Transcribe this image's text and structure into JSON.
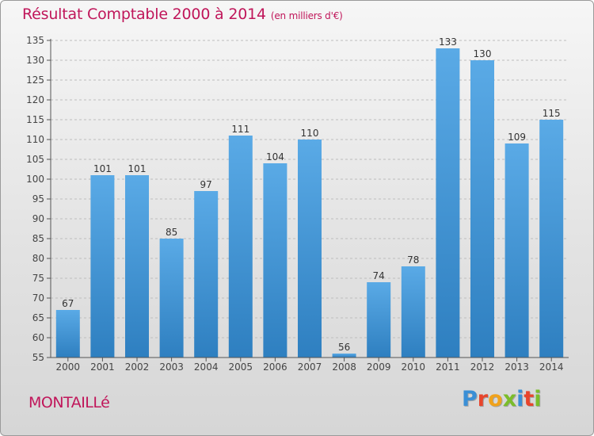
{
  "header": {
    "title": "Résultat Comptable 2000 à 2014",
    "unit": "(en milliers d'€)"
  },
  "footer": {
    "commune": "MONTAILLé",
    "brand": "Proxiti"
  },
  "colors": {
    "title": "#c0165a",
    "bar_top": "#5aaae6",
    "bar_bottom": "#2e7fc0",
    "axis": "#555555",
    "grid": "#bdbdbd",
    "brand_letters": [
      "#3a8fd6",
      "#e8452c",
      "#f0a21c",
      "#7bbd2a",
      "#3a8fd6",
      "#e8452c",
      "#7bbd2a"
    ]
  },
  "chart_data": {
    "type": "bar",
    "title": "Résultat Comptable 2000 à 2014",
    "subtitle": "(en milliers d'€)",
    "xlabel": "",
    "ylabel": "",
    "categories": [
      "2000",
      "2001",
      "2002",
      "2003",
      "2004",
      "2005",
      "2006",
      "2007",
      "2008",
      "2009",
      "2010",
      "2011",
      "2012",
      "2013",
      "2014"
    ],
    "values": [
      67,
      101,
      101,
      85,
      97,
      111,
      104,
      110,
      56,
      74,
      78,
      133,
      130,
      109,
      115
    ],
    "ylim": [
      55,
      135
    ],
    "yticks": [
      55,
      60,
      65,
      70,
      75,
      80,
      85,
      90,
      95,
      100,
      105,
      110,
      115,
      120,
      125,
      130,
      135
    ],
    "grid": "dashed horizontal",
    "legend": "none"
  }
}
